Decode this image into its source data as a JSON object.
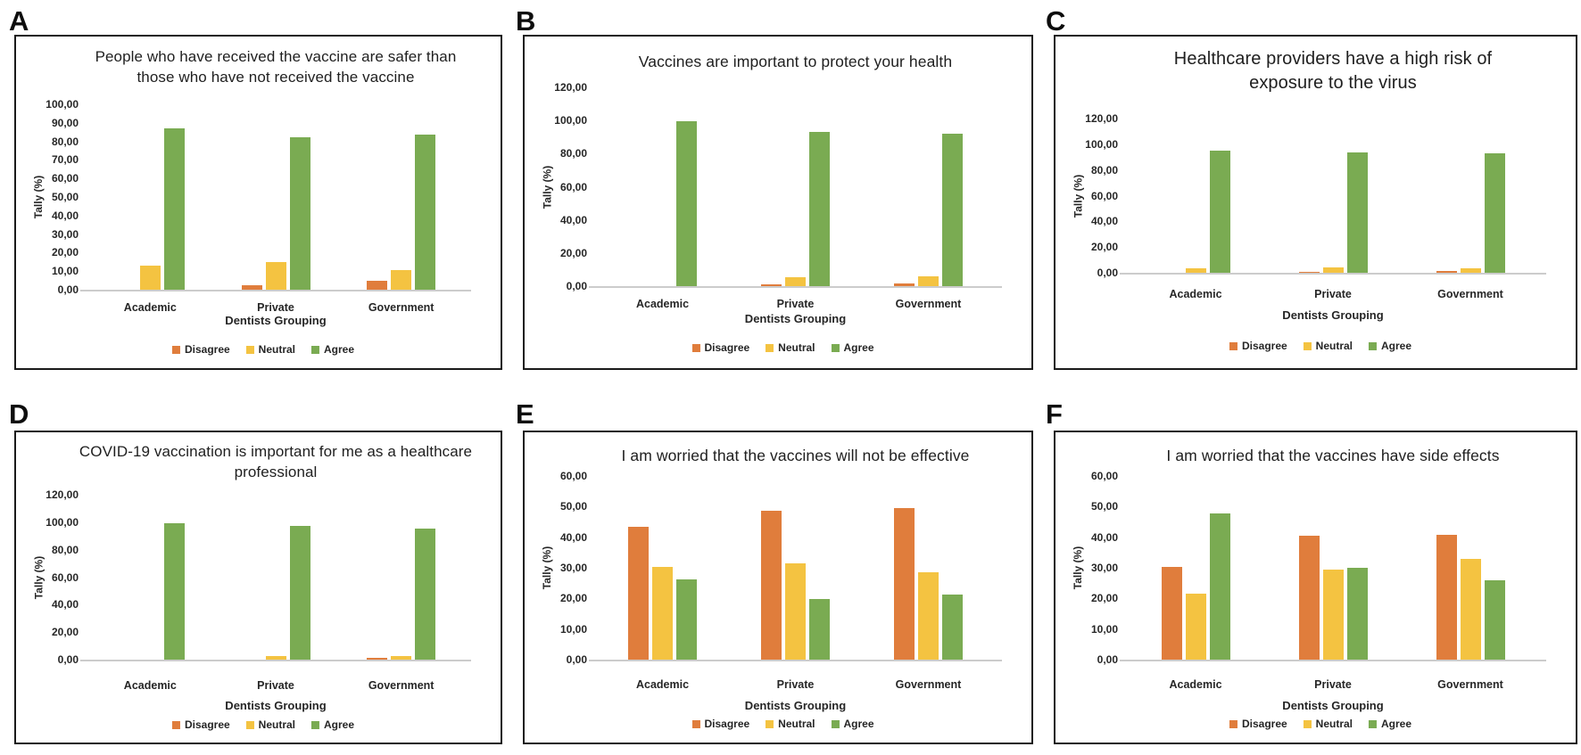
{
  "figure": {
    "letters": [
      "A",
      "B",
      "C",
      "D",
      "E",
      "F"
    ],
    "background_color": "#ffffff",
    "panel_border_color": "#1a1a1a",
    "text_color": "#262626",
    "baseline_color": "#cccccc"
  },
  "legend": {
    "labels": [
      "Disagree",
      "Neutral",
      "Agree"
    ],
    "colors": [
      "#E07D3C",
      "#F4C341",
      "#7AAB52"
    ]
  },
  "chart_data": [
    {
      "type": "bar",
      "panel": "A",
      "title": "People who have received the vaccine are safer than those who have not received the vaccine",
      "title_lines": [
        "People who have received the vaccine are safer than",
        "those who have not received the vaccine"
      ],
      "xlabel": "Dentists Grouping",
      "ylabel": "Tally (%)",
      "ylim": [
        0,
        100
      ],
      "grid": false,
      "legend_position": "bottom",
      "ytick_values": [
        100,
        90,
        80,
        70,
        60,
        50,
        40,
        30,
        20,
        10,
        0
      ],
      "ytick_labels": [
        "100,00",
        "90,00",
        "80,00",
        "70,00",
        "60,00",
        "50,00",
        "40,00",
        "30,00",
        "20,00",
        "10,00",
        "0,00"
      ],
      "categories": [
        "Academic",
        "Private",
        "Government"
      ],
      "series": [
        {
          "name": "Disagree",
          "color": "#E07D3C",
          "values": [
            0,
            2.3,
            4.7
          ]
        },
        {
          "name": "Neutral",
          "color": "#F4C341",
          "values": [
            12.9,
            14.7,
            10.8
          ]
        },
        {
          "name": "Agree",
          "color": "#7AAB52",
          "values": [
            86.8,
            82.2,
            83.7
          ]
        }
      ]
    },
    {
      "type": "bar",
      "panel": "B",
      "title": "Vaccines are important to protect your health",
      "title_lines": [
        "Vaccines are important to protect your health"
      ],
      "xlabel": "Dentists Grouping",
      "ylabel": "Tally (%)",
      "ylim": [
        0,
        120
      ],
      "grid": false,
      "legend_position": "bottom",
      "ytick_values": [
        120,
        100,
        80,
        60,
        40,
        20,
        0
      ],
      "ytick_labels": [
        "120,00",
        "100,00",
        "80,00",
        "60,00",
        "40,00",
        "20,00",
        "0,00"
      ],
      "categories": [
        "Academic",
        "Private",
        "Government"
      ],
      "series": [
        {
          "name": "Disagree",
          "color": "#E07D3C",
          "values": [
            0,
            1.0,
            1.5
          ]
        },
        {
          "name": "Neutral",
          "color": "#F4C341",
          "values": [
            0,
            5.4,
            5.9
          ]
        },
        {
          "name": "Agree",
          "color": "#7AAB52",
          "values": [
            99.5,
            93.3,
            92.0
          ]
        }
      ]
    },
    {
      "type": "bar",
      "panel": "C",
      "title": "Healthcare providers have a high risk of exposure to the virus",
      "title_lines": [
        "Healthcare providers have a high risk of",
        "exposure to the virus"
      ],
      "xlabel": "Dentists Grouping",
      "ylabel": "Tally (%)",
      "ylim": [
        0,
        120
      ],
      "grid": false,
      "legend_position": "bottom",
      "ytick_values": [
        120,
        100,
        80,
        60,
        40,
        20,
        0
      ],
      "ytick_labels": [
        "120,00",
        "100,00",
        "80,00",
        "60,00",
        "40,00",
        "20,00",
        "0,00"
      ],
      "categories": [
        "Academic",
        "Private",
        "Government"
      ],
      "series": [
        {
          "name": "Disagree",
          "color": "#E07D3C",
          "values": [
            0,
            1.0,
            1.7
          ]
        },
        {
          "name": "Neutral",
          "color": "#F4C341",
          "values": [
            3.6,
            4.5,
            3.3
          ]
        },
        {
          "name": "Agree",
          "color": "#7AAB52",
          "values": [
            95.0,
            93.6,
            93.0
          ]
        }
      ]
    },
    {
      "type": "bar",
      "panel": "D",
      "title": "COVID-19 vaccination is important for me as a healthcare professional",
      "title_lines": [
        "COVID-19 vaccination is important for me as a healthcare",
        "professional"
      ],
      "xlabel": "Dentists Grouping",
      "ylabel": "Tally (%)",
      "ylim": [
        0,
        120
      ],
      "grid": false,
      "legend_position": "bottom",
      "ytick_values": [
        120,
        100,
        80,
        60,
        40,
        20,
        0
      ],
      "ytick_labels": [
        "120,00",
        "100,00",
        "80,00",
        "60,00",
        "40,00",
        "20,00",
        "0,00"
      ],
      "categories": [
        "Academic",
        "Private",
        "Government"
      ],
      "series": [
        {
          "name": "Disagree",
          "color": "#E07D3C",
          "values": [
            0,
            0,
            1.0
          ]
        },
        {
          "name": "Neutral",
          "color": "#F4C341",
          "values": [
            0,
            2.4,
            2.9
          ]
        },
        {
          "name": "Agree",
          "color": "#7AAB52",
          "values": [
            99.5,
            97.0,
            95.5
          ]
        }
      ]
    },
    {
      "type": "bar",
      "panel": "E",
      "title": "I am worried that the vaccines will not be effective",
      "title_lines": [
        "I am worried that the vaccines will not be effective"
      ],
      "xlabel": "Dentists Grouping",
      "ylabel": "Tally (%)",
      "ylim": [
        0,
        60
      ],
      "grid": false,
      "legend_position": "bottom",
      "ytick_values": [
        60,
        50,
        40,
        30,
        20,
        10,
        0
      ],
      "ytick_labels": [
        "60,00",
        "50,00",
        "40,00",
        "30,00",
        "20,00",
        "10,00",
        "0,00"
      ],
      "categories": [
        "Academic",
        "Private",
        "Government"
      ],
      "series": [
        {
          "name": "Disagree",
          "color": "#E07D3C",
          "values": [
            43.5,
            48.6,
            49.6
          ]
        },
        {
          "name": "Neutral",
          "color": "#F4C341",
          "values": [
            30.4,
            31.4,
            28.4
          ]
        },
        {
          "name": "Agree",
          "color": "#7AAB52",
          "values": [
            26.1,
            19.7,
            21.3
          ]
        }
      ]
    },
    {
      "type": "bar",
      "panel": "F",
      "title": "I am worried that the vaccines have side effects",
      "title_lines": [
        "I am worried that the vaccines have side effects"
      ],
      "xlabel": "Dentists Grouping",
      "ylabel": "Tally (%)",
      "ylim": [
        0,
        60
      ],
      "grid": false,
      "legend_position": "bottom",
      "ytick_values": [
        60,
        50,
        40,
        30,
        20,
        10,
        0
      ],
      "ytick_labels": [
        "60,00",
        "50,00",
        "40,00",
        "30,00",
        "20,00",
        "10,00",
        "0,00"
      ],
      "categories": [
        "Academic",
        "Private",
        "Government"
      ],
      "series": [
        {
          "name": "Disagree",
          "color": "#E07D3C",
          "values": [
            30.4,
            40.4,
            40.9
          ]
        },
        {
          "name": "Neutral",
          "color": "#F4C341",
          "values": [
            21.6,
            29.4,
            33.0
          ]
        },
        {
          "name": "Agree",
          "color": "#7AAB52",
          "values": [
            47.9,
            30.1,
            25.9
          ]
        }
      ]
    }
  ]
}
